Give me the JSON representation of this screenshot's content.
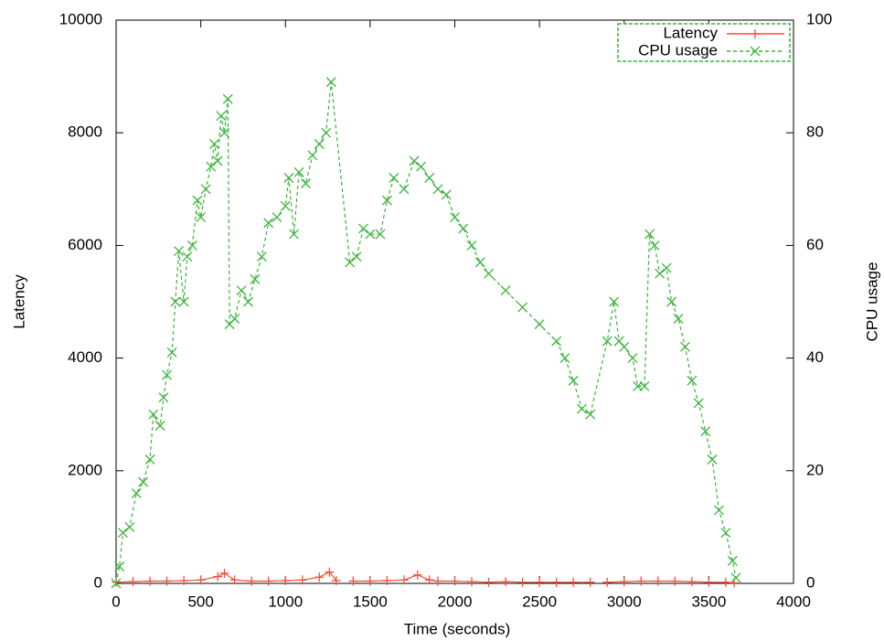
{
  "chart_data": {
    "type": "line",
    "xlabel": "Time (seconds)",
    "ylabel": "Latency",
    "y2label": "CPU usage",
    "xlim": [
      0,
      4000
    ],
    "xticks": [
      0,
      500,
      1000,
      1500,
      2000,
      2500,
      3000,
      3500,
      4000
    ],
    "ylim": [
      0,
      10000
    ],
    "yticks": [
      0,
      2000,
      4000,
      6000,
      8000,
      10000
    ],
    "y2lim": [
      0,
      100
    ],
    "y2ticks": [
      0,
      20,
      40,
      60,
      80,
      100
    ],
    "legend": "top-right",
    "series": [
      {
        "name": "Latency",
        "color": "#f0503c",
        "marker": "plus",
        "x": [
          0,
          100,
          200,
          300,
          400,
          500,
          600,
          640,
          700,
          800,
          900,
          1000,
          1100,
          1200,
          1260,
          1300,
          1340,
          1400,
          1500,
          1600,
          1700,
          1780,
          1850,
          1900,
          2000,
          2100,
          2200,
          2300,
          2400,
          2500,
          2600,
          2700,
          2800,
          2850,
          2900,
          3000,
          3100,
          3200,
          3300,
          3400,
          3500,
          3600,
          3650
        ],
        "values": [
          20,
          30,
          40,
          40,
          50,
          60,
          120,
          180,
          60,
          40,
          40,
          50,
          60,
          110,
          200,
          50,
          null,
          40,
          40,
          50,
          60,
          150,
          60,
          40,
          40,
          30,
          20,
          30,
          20,
          20,
          20,
          20,
          20,
          null,
          20,
          30,
          40,
          40,
          40,
          30,
          20,
          20,
          10
        ]
      },
      {
        "name": "CPU usage",
        "color": "#3cb43c",
        "marker": "cross",
        "axis": "y2",
        "dashed": true,
        "x": [
          0,
          20,
          40,
          80,
          120,
          160,
          200,
          220,
          260,
          280,
          300,
          330,
          350,
          370,
          400,
          420,
          450,
          480,
          500,
          530,
          560,
          580,
          600,
          620,
          640,
          660,
          670,
          700,
          740,
          780,
          820,
          860,
          900,
          950,
          1000,
          1020,
          1050,
          1080,
          1120,
          1160,
          1200,
          1240,
          1270,
          1380,
          1420,
          1460,
          1500,
          1560,
          1600,
          1640,
          1700,
          1760,
          1800,
          1850,
          1900,
          1950,
          2000,
          2050,
          2100,
          2150,
          2200,
          2300,
          2400,
          2500,
          2600,
          2650,
          2700,
          2750,
          2800,
          2900,
          2940,
          2970,
          3000,
          3050,
          3080,
          3120,
          3150,
          3180,
          3210,
          3250,
          3280,
          3320,
          3360,
          3400,
          3440,
          3480,
          3520,
          3560,
          3600,
          3640,
          3660
        ],
        "values": [
          0,
          3,
          9,
          10,
          16,
          18,
          22,
          30,
          28,
          33,
          37,
          41,
          50,
          59,
          50,
          58,
          60,
          68,
          65,
          70,
          74,
          78,
          75,
          83,
          80,
          86,
          46,
          47,
          52,
          50,
          54,
          58,
          64,
          65,
          67,
          72,
          62,
          73,
          71,
          76,
          78,
          80,
          89,
          57,
          58,
          63,
          62,
          62,
          68,
          72,
          70,
          75,
          74,
          72,
          70,
          69,
          65,
          63,
          60,
          57,
          55,
          52,
          49,
          46,
          43,
          40,
          36,
          31,
          30,
          43,
          50,
          43,
          42,
          40,
          35,
          35,
          62,
          60,
          55,
          56,
          50,
          47,
          42,
          36,
          32,
          27,
          22,
          13,
          9,
          4,
          1
        ]
      }
    ]
  }
}
